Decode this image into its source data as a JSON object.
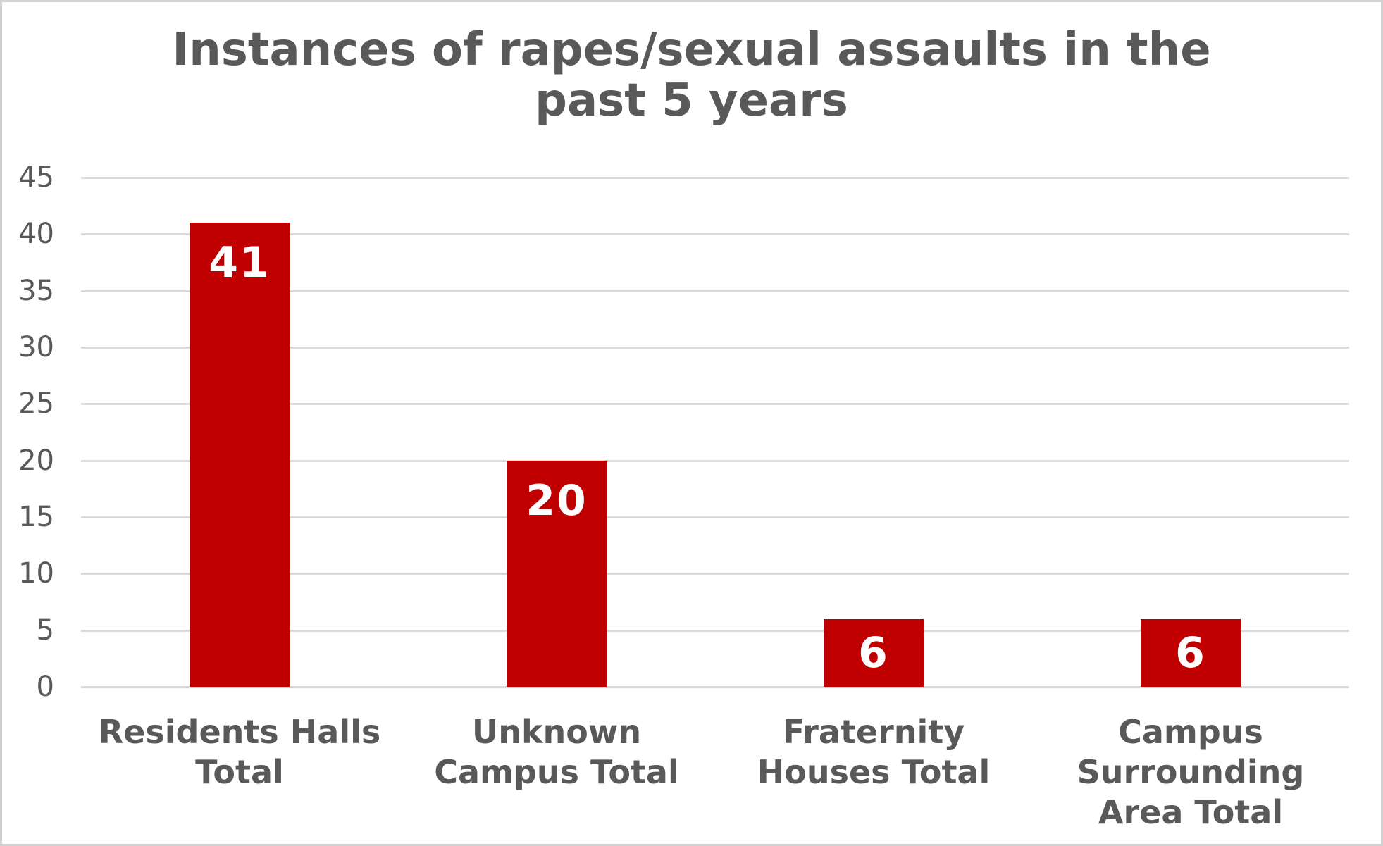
{
  "window": {
    "background_color": "#ffffff",
    "border_color": "#d2d2d2"
  },
  "chart_data": {
    "type": "bar",
    "title": "Instances of rapes/sexual assaults in the past 5 years",
    "title_lines": [
      "Instances of rapes/sexual assaults in the",
      "past 5 years"
    ],
    "categories": [
      "Residents Halls Total",
      "Unknown Campus Total",
      "Fraternity Houses Total",
      "Campus Surrounding Area Total"
    ],
    "category_label_lines": [
      [
        "Residents Halls",
        "Total"
      ],
      [
        "Unknown",
        "Campus Total"
      ],
      [
        "Fraternity",
        "Houses Total"
      ],
      [
        "Campus",
        "Surrounding",
        "Area Total"
      ]
    ],
    "values": [
      41,
      20,
      6,
      6
    ],
    "data_labels": [
      "41",
      "20",
      "6",
      "6"
    ],
    "xlabel": "",
    "ylabel": "",
    "ylim": [
      0,
      45
    ],
    "yticks": [
      0,
      5,
      10,
      15,
      20,
      25,
      30,
      35,
      40,
      45
    ],
    "grid": true,
    "legend": false,
    "colors": {
      "bar": "#c00000",
      "data_label": "#ffffff",
      "title_text": "#595959",
      "axis_text": "#595959",
      "gridline": "#dadada"
    }
  }
}
